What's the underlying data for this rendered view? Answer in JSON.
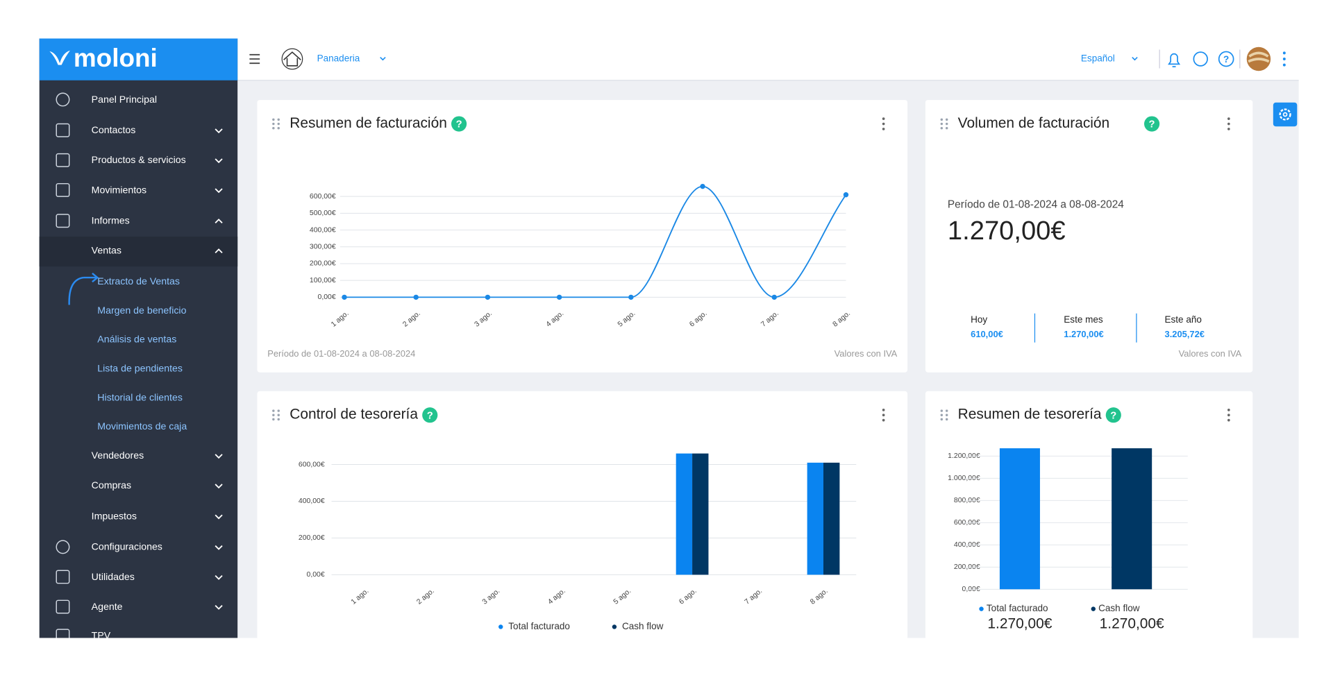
{
  "brand": "moloni",
  "header": {
    "company": "Panaderia",
    "language": "Español"
  },
  "menu": [
    "Panel Principal",
    "Contactos",
    "Productos & servicios",
    "Movimientos",
    "Informes",
    "Ventas",
    "Extracto de Ventas",
    "Margen de beneficio",
    "Análisis de ventas",
    "Lista de pendientes",
    "Historial de clientes",
    "Movimientos de caja",
    "Vendedores",
    "Compras",
    "Impuestos",
    "Configuraciones",
    "Utilidades",
    "Agente",
    "TPV"
  ],
  "volumen": {
    "title": "Volumen de facturación",
    "period": "Período de 01-08-2024 a 08-08-2024",
    "total": "1.270,00€",
    "stats": [
      {
        "label": "Hoy",
        "value": "610,00€"
      },
      {
        "label": "Este mes",
        "value": "1.270,00€"
      },
      {
        "label": "Este año",
        "value": "3.205,72€"
      }
    ],
    "note": "Valores con IVA"
  },
  "chart_data": [
    {
      "type": "line",
      "title": "Resumen de facturación",
      "categories": [
        "1 ago.",
        "2 ago.",
        "3 ago.",
        "4 ago.",
        "5 ago.",
        "6 ago.",
        "7 ago.",
        "8 ago."
      ],
      "values": [
        0,
        0,
        0,
        0,
        0,
        660,
        0,
        610
      ],
      "color": "#1a88e5",
      "ylim": [
        0,
        660
      ],
      "yticks": [
        {
          "value": 0,
          "label": "0,00€"
        },
        {
          "value": 100,
          "label": "100,00€"
        },
        {
          "value": 200,
          "label": "200,00€"
        },
        {
          "value": 300,
          "label": "300,00€"
        },
        {
          "value": 400,
          "label": "400,00€"
        },
        {
          "value": 500,
          "label": "500,00€"
        },
        {
          "value": 600,
          "label": "600,00€"
        }
      ],
      "grid": true,
      "footnote": "Período de 01-08-2024 a 08-08-2024",
      "note": "Valores con IVA"
    },
    {
      "type": "bar",
      "title": "Control de tesorería",
      "categories": [
        "1 ago.",
        "2 ago.",
        "3 ago.",
        "4 ago.",
        "5 ago.",
        "6 ago.",
        "7 ago.",
        "8 ago."
      ],
      "series": [
        {
          "name": "Total facturado",
          "color": "#0a84f0",
          "values": [
            0,
            0,
            0,
            0,
            0,
            660,
            0,
            610
          ]
        },
        {
          "name": "Cash flow",
          "color": "#003764",
          "values": [
            0,
            0,
            0,
            0,
            0,
            660,
            0,
            610
          ]
        }
      ],
      "ylim": [
        0,
        660
      ],
      "yticks": [
        {
          "value": 0,
          "label": "0,00€"
        },
        {
          "value": 200,
          "label": "200,00€"
        },
        {
          "value": 400,
          "label": "400,00€"
        },
        {
          "value": 600,
          "label": "600,00€"
        }
      ],
      "grid": true,
      "legend": "bottom"
    },
    {
      "type": "bar",
      "title": "Resumen de tesorería",
      "categories": [
        null
      ],
      "series": [
        {
          "name": "Total facturado",
          "color": "#0a84f0",
          "values": [
            1270
          ],
          "value_labels": [
            "1.270,00€"
          ]
        },
        {
          "name": "Cash flow",
          "color": "#003764",
          "values": [
            1270
          ],
          "value_labels": [
            "1.270,00€"
          ]
        }
      ],
      "ylim": [
        0,
        1300
      ],
      "yticks": [
        {
          "value": 0,
          "label": "0,00€"
        },
        {
          "value": 200,
          "label": "200,00€"
        },
        {
          "value": 400,
          "label": "400,00€"
        },
        {
          "value": 600,
          "label": "600,00€"
        },
        {
          "value": 800,
          "label": "800,00€"
        },
        {
          "value": 1000,
          "label": "1.000,00€"
        },
        {
          "value": 1200,
          "label": "1.200,00€"
        }
      ],
      "grid": true,
      "legend": "under-bars"
    }
  ]
}
